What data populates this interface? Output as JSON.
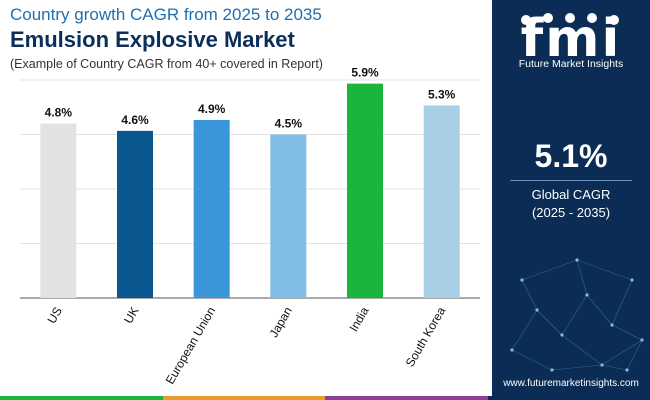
{
  "header": {
    "title_line1": "Country growth CAGR from 2025 to 2035",
    "title_line2": "Emulsion Explosive Market",
    "subtitle": "(Example of Country CAGR from 40+ covered in Report)"
  },
  "chart_data": {
    "type": "bar",
    "title": "Country growth CAGR from 2025 to 2035",
    "categories": [
      "US",
      "UK",
      "European Union",
      "Japan",
      "India",
      "South Korea"
    ],
    "values": [
      4.8,
      4.6,
      4.9,
      4.5,
      5.9,
      5.3
    ],
    "value_labels": [
      "4.8%",
      "4.6%",
      "4.9%",
      "4.5%",
      "5.9%",
      "5.3%"
    ],
    "colors": [
      "#e2e2e2",
      "#0b5891",
      "#3a96d8",
      "#82bde5",
      "#1ab43f",
      "#a9cfe6"
    ],
    "ylim": [
      0,
      6
    ],
    "xlabel": "",
    "ylabel": "",
    "grid": true
  },
  "sidebar": {
    "logo_text": "fmi",
    "brand": "Future Market Insights",
    "stat_value": "5.1%",
    "stat_label": "Global CAGR",
    "stat_period": "(2025 - 2035)",
    "website": "www.futuremarketinsights.com"
  },
  "strip_colors": [
    "#1ab43f",
    "#e89a2c",
    "#8c3f94",
    "#0b2c55"
  ]
}
